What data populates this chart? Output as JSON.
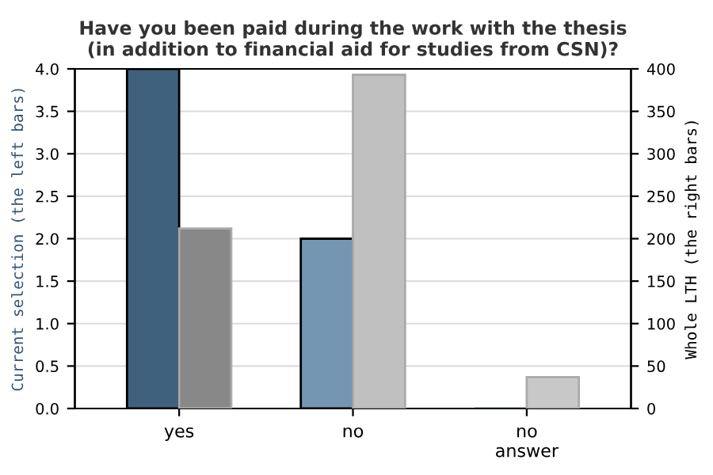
{
  "chart_data": {
    "type": "bar",
    "title": "Have you been paid during the work with the thesis\n(in addition to financial aid for studies from CSN)?",
    "ylabel": "Current selection (the left bars)",
    "y2label": "Whole LTH (the right bars)",
    "categories": [
      "yes",
      "no",
      "no\nanswer"
    ],
    "series": [
      {
        "colors": [
          "#40617e",
          "#7496b2",
          "#7496b2"
        ],
        "values": [
          4,
          2,
          0
        ]
      },
      {
        "colors": [
          "#888888",
          "#c0c0c0",
          "#c8c8c8"
        ],
        "values": [
          212,
          393,
          37
        ],
        "axis": "y2"
      }
    ],
    "ylim": [
      0,
      4
    ],
    "yticks": [
      {
        "value": 0,
        "label": "0.0"
      },
      0.5,
      {
        "value": 1,
        "label": "1.0"
      },
      1.5,
      {
        "value": 2,
        "label": "2.0"
      },
      2.5,
      {
        "value": 3,
        "label": "3.0"
      },
      3.5,
      {
        "value": 4,
        "label": "4.0"
      }
    ],
    "y2lim": [
      0,
      400
    ],
    "y2ticks": [
      0,
      50,
      100,
      150,
      200,
      250,
      300,
      350,
      400
    ],
    "grid": "y",
    "legend": false
  }
}
